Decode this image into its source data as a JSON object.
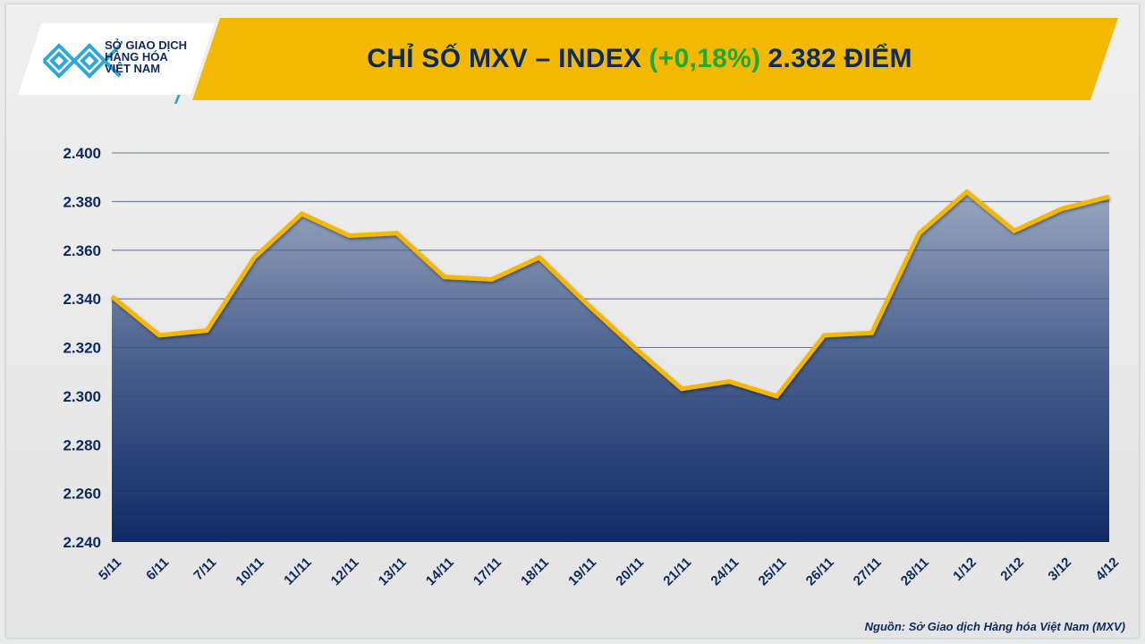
{
  "header": {
    "logo_text": [
      "SỞ GIAO DỊCH",
      "HÀNG HÓA",
      "VIỆT NAM"
    ],
    "title_main": "CHỈ SỐ MXV – INDEX",
    "title_change": "(+0,18%)",
    "title_value": "2.382 ĐIỂM"
  },
  "colors": {
    "banner": "#f2b900",
    "line": "#f5b800",
    "area_top": "#8b9ab5",
    "area_bottom": "#0f2a66",
    "title": "#0d2a5c",
    "change": "#1fa83a"
  },
  "chart_data": {
    "type": "area",
    "title": "CHỈ SỐ MXV – INDEX (+0,18%) 2.382 ĐIỂM",
    "categories": [
      "5/11",
      "6/11",
      "7/11",
      "10/11",
      "11/11",
      "12/11",
      "13/11",
      "14/11",
      "17/11",
      "18/11",
      "19/11",
      "20/11",
      "21/11",
      "24/11",
      "25/11",
      "26/11",
      "27/11",
      "28/11",
      "1/12",
      "2/12",
      "3/12",
      "4/12"
    ],
    "values": [
      2341,
      2325,
      2327,
      2357,
      2375,
      2366,
      2367,
      2349,
      2348,
      2357,
      2338,
      2320,
      2303,
      2306,
      2300,
      2325,
      2326,
      2367,
      2384,
      2368,
      2377,
      2382
    ],
    "ylim": [
      2240,
      2400
    ],
    "yticks": [
      2240,
      2260,
      2280,
      2300,
      2320,
      2340,
      2360,
      2380,
      2400
    ],
    "ytick_labels": [
      "2.240",
      "2.260",
      "2.280",
      "2.300",
      "2.320",
      "2.340",
      "2.360",
      "2.380",
      "2.400"
    ],
    "grid": true,
    "legend": "none"
  },
  "source": "Nguồn: Sở Giao dịch Hàng hóa Việt Nam (MXV)"
}
